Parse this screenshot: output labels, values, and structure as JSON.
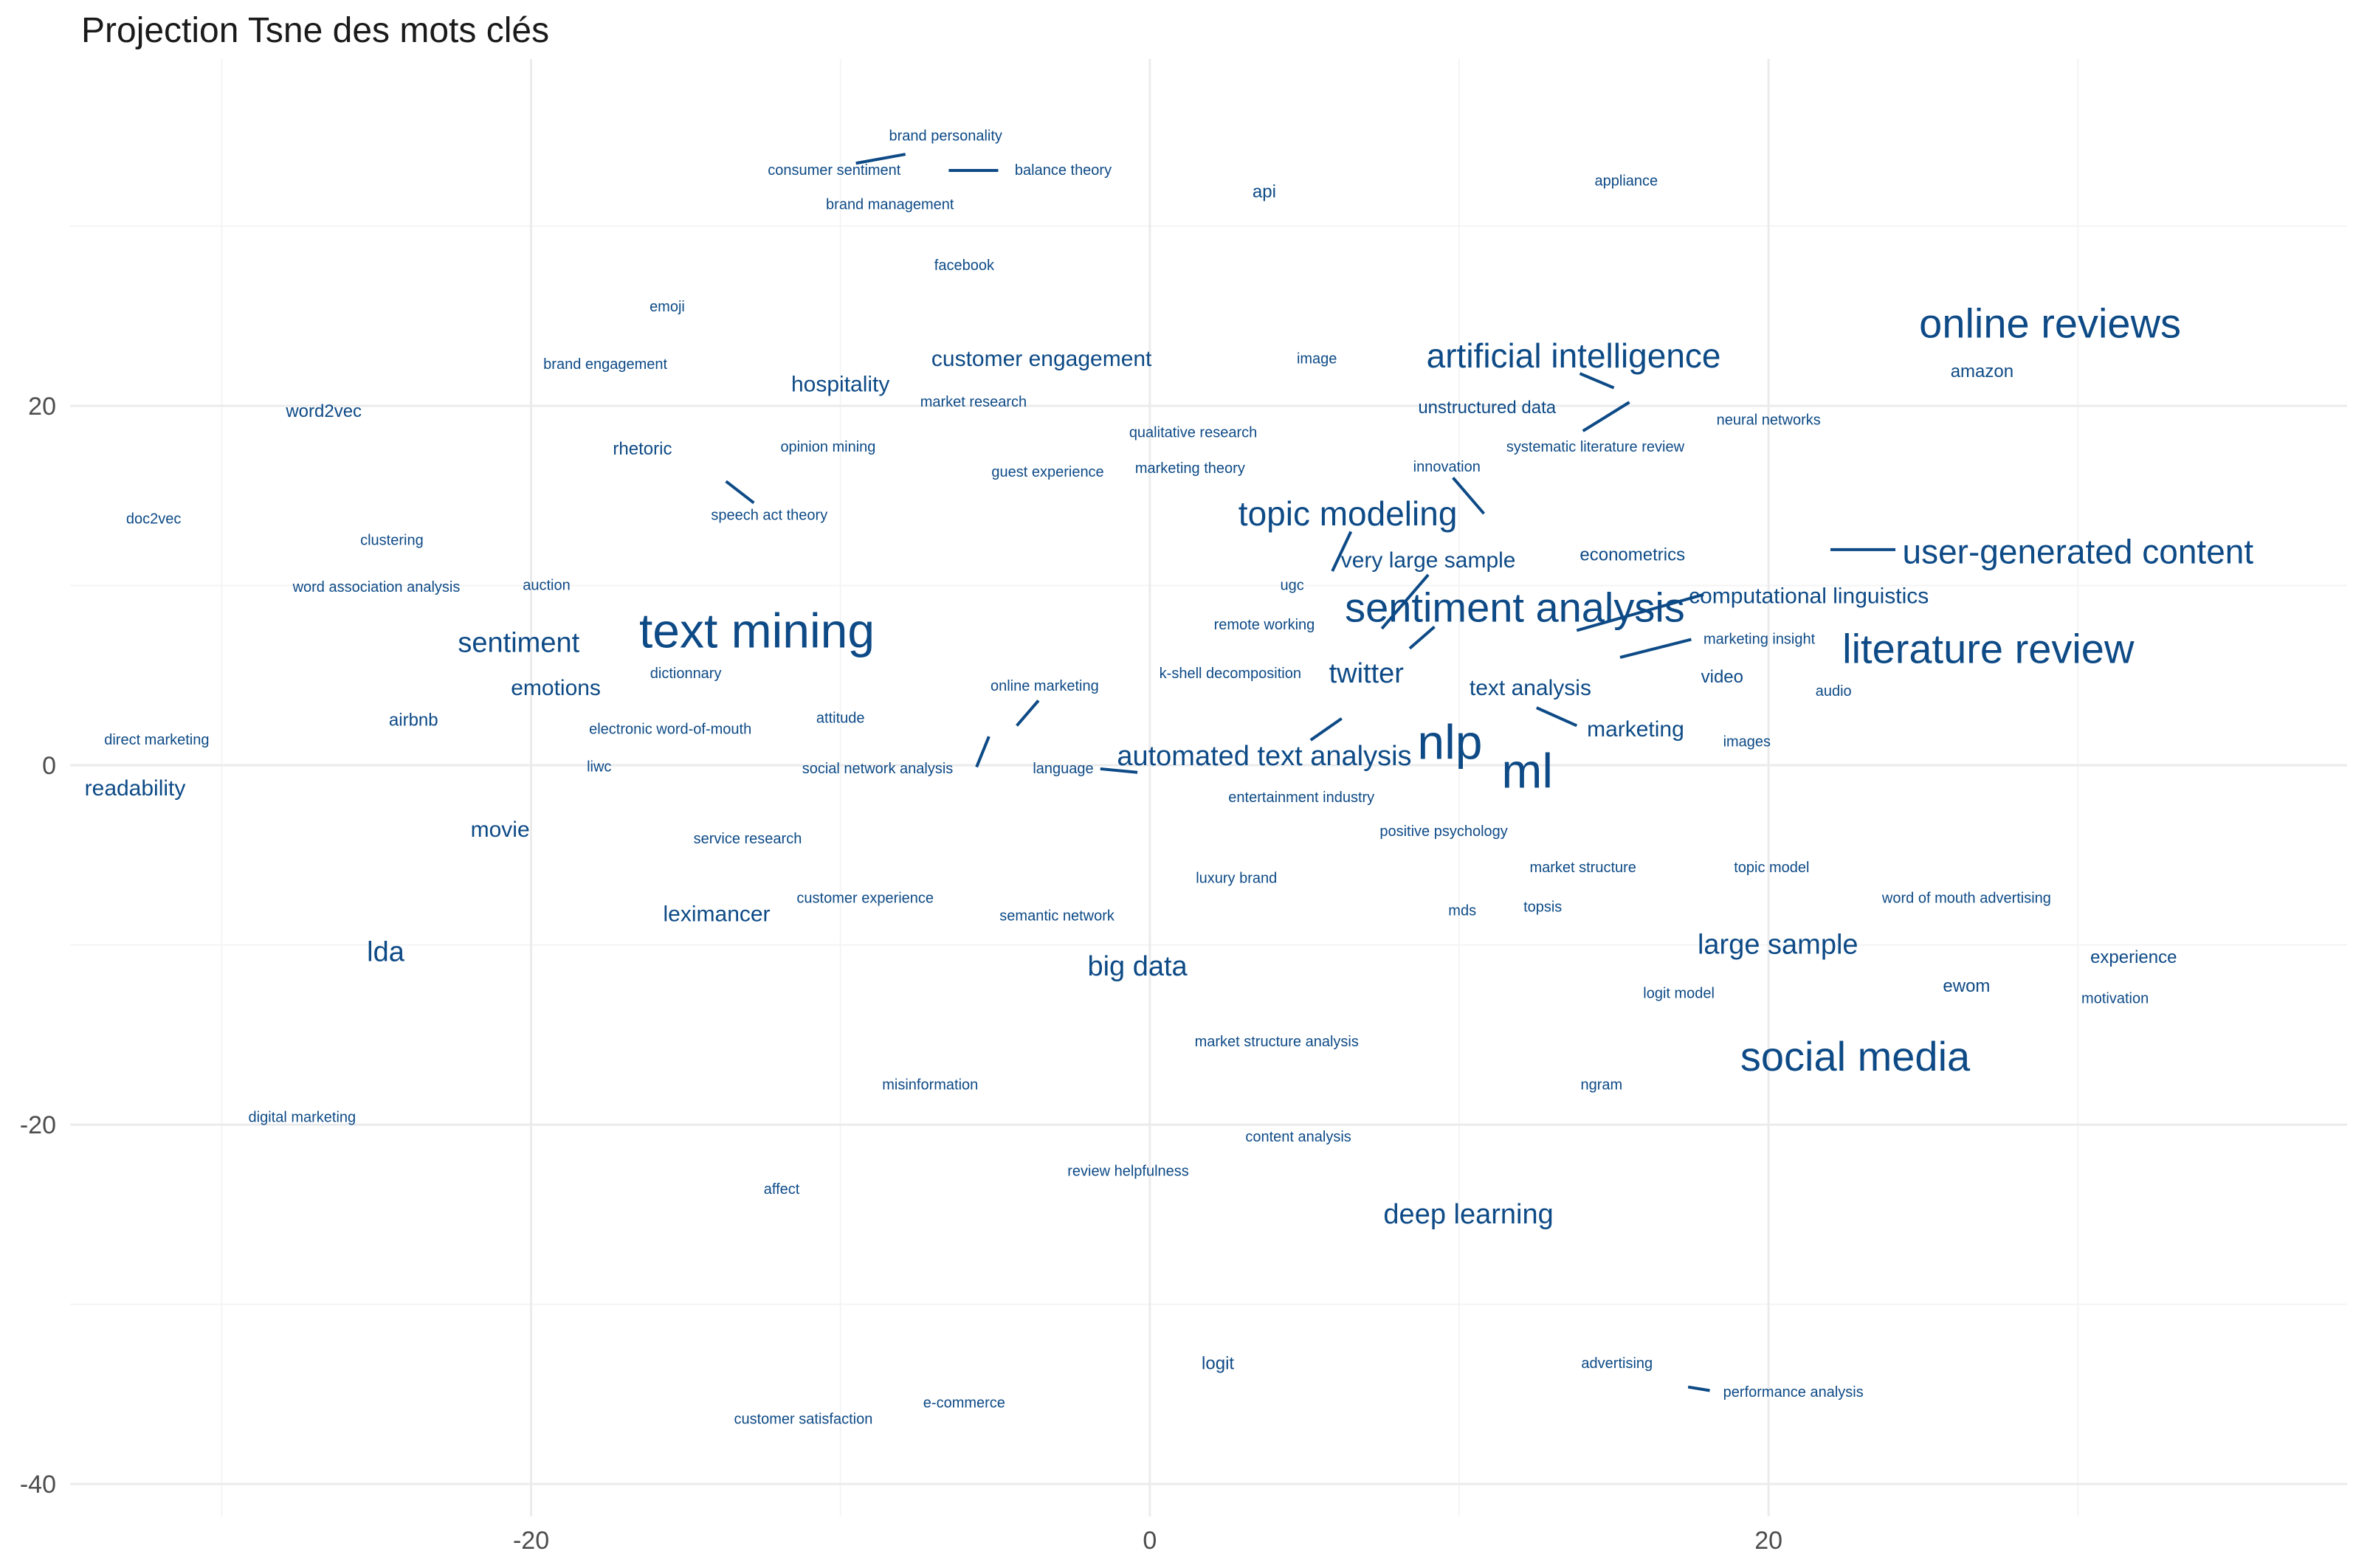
{
  "chart_data": {
    "type": "scatter",
    "title": "Projection Tsne des mots clés",
    "xlabel": "",
    "ylabel": "",
    "xlim": [
      -34.9,
      38.7
    ],
    "ylim": [
      -41.8,
      39.3
    ],
    "x_ticks": [
      -20,
      0,
      20
    ],
    "y_ticks": [
      20,
      0,
      -20,
      -40
    ],
    "grid": true,
    "legend": "none",
    "color": "#0d4a86",
    "points": [
      {
        "label": "brand personality",
        "x": -6.6,
        "y": 35.0,
        "size": 1
      },
      {
        "label": "consumer sentiment",
        "x": -10.2,
        "y": 33.1,
        "size": 1
      },
      {
        "label": "balance theory",
        "x": -2.8,
        "y": 33.1,
        "size": 1
      },
      {
        "label": "brand management",
        "x": -8.4,
        "y": 31.2,
        "size": 1
      },
      {
        "label": "api",
        "x": 3.7,
        "y": 31.9,
        "size": 2
      },
      {
        "label": "appliance",
        "x": 15.4,
        "y": 32.5,
        "size": 1
      },
      {
        "label": "facebook",
        "x": -6.0,
        "y": 27.8,
        "size": 1
      },
      {
        "label": "emoji",
        "x": -15.6,
        "y": 25.5,
        "size": 1
      },
      {
        "label": "customer engagement",
        "x": -3.5,
        "y": 22.6,
        "size": 3
      },
      {
        "label": "image",
        "x": 5.4,
        "y": 22.6,
        "size": 1
      },
      {
        "label": "artificial intelligence",
        "x": 13.7,
        "y": 22.8,
        "size": 5
      },
      {
        "label": "online reviews",
        "x": 29.1,
        "y": 24.6,
        "size": 6
      },
      {
        "label": "brand engagement",
        "x": -17.6,
        "y": 22.3,
        "size": 1
      },
      {
        "label": "hospitality",
        "x": -10.0,
        "y": 21.2,
        "size": 3
      },
      {
        "label": "market research",
        "x": -5.7,
        "y": 20.2,
        "size": 1
      },
      {
        "label": "amazon",
        "x": 26.9,
        "y": 21.9,
        "size": 2
      },
      {
        "label": "word2vec",
        "x": -26.7,
        "y": 19.7,
        "size": 2
      },
      {
        "label": "unstructured data",
        "x": 10.9,
        "y": 19.9,
        "size": 2
      },
      {
        "label": "neural networks",
        "x": 20.0,
        "y": 19.2,
        "size": 1
      },
      {
        "label": "qualitative research",
        "x": 1.4,
        "y": 18.5,
        "size": 1
      },
      {
        "label": "systematic literature review",
        "x": 14.4,
        "y": 17.7,
        "size": 1
      },
      {
        "label": "rhetoric",
        "x": -16.4,
        "y": 17.6,
        "size": 2
      },
      {
        "label": "opinion mining",
        "x": -10.4,
        "y": 17.7,
        "size": 1
      },
      {
        "label": "guest experience",
        "x": -3.3,
        "y": 16.3,
        "size": 1
      },
      {
        "label": "marketing theory",
        "x": 1.3,
        "y": 16.5,
        "size": 1
      },
      {
        "label": "innovation",
        "x": 9.6,
        "y": 16.6,
        "size": 1
      },
      {
        "label": "doc2vec",
        "x": -32.2,
        "y": 13.7,
        "size": 1
      },
      {
        "label": "speech act theory",
        "x": -12.3,
        "y": 13.9,
        "size": 1
      },
      {
        "label": "topic modeling",
        "x": 6.4,
        "y": 14.0,
        "size": 5
      },
      {
        "label": "clustering",
        "x": -24.5,
        "y": 12.5,
        "size": 1
      },
      {
        "label": "very large sample",
        "x": 9.0,
        "y": 11.4,
        "size": 3
      },
      {
        "label": "econometrics",
        "x": 15.6,
        "y": 11.7,
        "size": 2
      },
      {
        "label": "user-generated content",
        "x": 30.0,
        "y": 11.9,
        "size": 5
      },
      {
        "label": "word association analysis",
        "x": -25.0,
        "y": 9.9,
        "size": 1
      },
      {
        "label": "auction",
        "x": -19.5,
        "y": 10.0,
        "size": 1
      },
      {
        "label": "ugc",
        "x": 4.6,
        "y": 10.0,
        "size": 1
      },
      {
        "label": "sentiment analysis",
        "x": 11.8,
        "y": 8.8,
        "size": 6
      },
      {
        "label": "computational linguistics",
        "x": 21.3,
        "y": 9.4,
        "size": 3
      },
      {
        "label": "text mining",
        "x": -12.7,
        "y": 7.5,
        "size": 7
      },
      {
        "label": "remote working",
        "x": 3.7,
        "y": 7.8,
        "size": 1
      },
      {
        "label": "marketing insight",
        "x": 19.7,
        "y": 7.0,
        "size": 1
      },
      {
        "label": "sentiment",
        "x": -20.4,
        "y": 6.8,
        "size": 4
      },
      {
        "label": "literature review",
        "x": 27.1,
        "y": 6.5,
        "size": 6
      },
      {
        "label": "dictionnary",
        "x": -15.0,
        "y": 5.1,
        "size": 1
      },
      {
        "label": "k-shell decomposition",
        "x": 2.6,
        "y": 5.1,
        "size": 1
      },
      {
        "label": "twitter",
        "x": 7.0,
        "y": 5.1,
        "size": 4
      },
      {
        "label": "video",
        "x": 18.5,
        "y": 4.9,
        "size": 2
      },
      {
        "label": "emotions",
        "x": -19.2,
        "y": 4.3,
        "size": 3
      },
      {
        "label": "online marketing",
        "x": -3.4,
        "y": 4.4,
        "size": 1
      },
      {
        "label": "text analysis",
        "x": 12.3,
        "y": 4.3,
        "size": 3
      },
      {
        "label": "audio",
        "x": 22.1,
        "y": 4.1,
        "size": 1
      },
      {
        "label": "airbnb",
        "x": -23.8,
        "y": 2.5,
        "size": 2
      },
      {
        "label": "attitude",
        "x": -10.0,
        "y": 2.6,
        "size": 1
      },
      {
        "label": "electronic word-of-mouth",
        "x": -15.5,
        "y": 2.0,
        "size": 1
      },
      {
        "label": "marketing",
        "x": 15.7,
        "y": 2.0,
        "size": 3
      },
      {
        "label": "direct marketing",
        "x": -32.1,
        "y": 1.4,
        "size": 1
      },
      {
        "label": "nlp",
        "x": 9.7,
        "y": 1.3,
        "size": 7
      },
      {
        "label": "images",
        "x": 19.3,
        "y": 1.3,
        "size": 1
      },
      {
        "label": "automated text analysis",
        "x": 3.7,
        "y": 0.5,
        "size": 4
      },
      {
        "label": "ml",
        "x": 12.2,
        "y": -0.3,
        "size": 7
      },
      {
        "label": "liwc",
        "x": -17.8,
        "y": -0.1,
        "size": 1
      },
      {
        "label": "social network analysis",
        "x": -8.8,
        "y": -0.2,
        "size": 1
      },
      {
        "label": "language",
        "x": -2.8,
        "y": -0.2,
        "size": 1
      },
      {
        "label": "readability",
        "x": -32.8,
        "y": -1.3,
        "size": 3
      },
      {
        "label": "entertainment industry",
        "x": 4.9,
        "y": -1.8,
        "size": 1
      },
      {
        "label": "movie",
        "x": -21.0,
        "y": -3.6,
        "size": 3
      },
      {
        "label": "positive psychology",
        "x": 9.5,
        "y": -3.7,
        "size": 1
      },
      {
        "label": "service research",
        "x": -13.0,
        "y": -4.1,
        "size": 1
      },
      {
        "label": "market structure",
        "x": 14.0,
        "y": -5.7,
        "size": 1
      },
      {
        "label": "topic model",
        "x": 20.1,
        "y": -5.7,
        "size": 1
      },
      {
        "label": "luxury brand",
        "x": 2.8,
        "y": -6.3,
        "size": 1
      },
      {
        "label": "customer experience",
        "x": -9.2,
        "y": -7.4,
        "size": 1
      },
      {
        "label": "word of mouth advertising",
        "x": 26.4,
        "y": -7.4,
        "size": 1
      },
      {
        "label": "mds",
        "x": 10.1,
        "y": -8.1,
        "size": 1
      },
      {
        "label": "topsis",
        "x": 12.7,
        "y": -7.9,
        "size": 1
      },
      {
        "label": "leximancer",
        "x": -14.0,
        "y": -8.3,
        "size": 3
      },
      {
        "label": "semantic network",
        "x": -3.0,
        "y": -8.4,
        "size": 1
      },
      {
        "label": "large sample",
        "x": 20.3,
        "y": -10.0,
        "size": 4
      },
      {
        "label": "lda",
        "x": -24.7,
        "y": -10.4,
        "size": 4
      },
      {
        "label": "experience",
        "x": 31.8,
        "y": -10.7,
        "size": 2
      },
      {
        "label": "big data",
        "x": -0.4,
        "y": -11.2,
        "size": 4
      },
      {
        "label": "ewom",
        "x": 26.4,
        "y": -12.3,
        "size": 2
      },
      {
        "label": "logit model",
        "x": 17.1,
        "y": -12.7,
        "size": 1
      },
      {
        "label": "motivation",
        "x": 31.2,
        "y": -13.0,
        "size": 1
      },
      {
        "label": "market structure analysis",
        "x": 4.1,
        "y": -15.4,
        "size": 1
      },
      {
        "label": "social media",
        "x": 22.8,
        "y": -16.2,
        "size": 6
      },
      {
        "label": "misinformation",
        "x": -7.1,
        "y": -17.8,
        "size": 1
      },
      {
        "label": "ngram",
        "x": 14.6,
        "y": -17.8,
        "size": 1
      },
      {
        "label": "digital marketing",
        "x": -27.4,
        "y": -19.6,
        "size": 1
      },
      {
        "label": "content analysis",
        "x": 4.8,
        "y": -20.7,
        "size": 1
      },
      {
        "label": "review helpfulness",
        "x": -0.7,
        "y": -22.6,
        "size": 1
      },
      {
        "label": "affect",
        "x": -11.9,
        "y": -23.6,
        "size": 1
      },
      {
        "label": "deep learning",
        "x": 10.3,
        "y": -25.0,
        "size": 4
      },
      {
        "label": "logit",
        "x": 2.2,
        "y": -33.3,
        "size": 2
      },
      {
        "label": "advertising",
        "x": 15.1,
        "y": -33.3,
        "size": 1
      },
      {
        "label": "performance analysis",
        "x": 20.8,
        "y": -34.9,
        "size": 1
      },
      {
        "label": "e-commerce",
        "x": -6.0,
        "y": -35.5,
        "size": 1
      },
      {
        "label": "customer satisfaction",
        "x": -11.2,
        "y": -36.4,
        "size": 1
      }
    ]
  }
}
